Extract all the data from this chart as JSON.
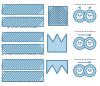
{
  "bg_color": "#ffffff",
  "screw_fill": "#aed6e8",
  "screw_line": "#5588aa",
  "cross_fill": "#aed6e8",
  "cross_line": "#5588aa",
  "circle_outer_fill": "#aed6e8",
  "circle_inner_fill": "#ffffff",
  "circle_line": "#5588aa",
  "arrow_color": "#5588aa",
  "text_color": "#333333",
  "caption_fontsize": 1.8,
  "rows": [
    {
      "cross_type": "closed",
      "flow_type": "counter",
      "screw_slope": 0.6,
      "caption": "(a) counter rotating screws"
    },
    {
      "cross_type": "m_open",
      "flow_type": "co_counter",
      "screw_slope": -0.6,
      "caption": "(b) counter threads co-rotating screws"
    },
    {
      "cross_type": "w_open",
      "flow_type": "co_single",
      "screw_slope": 0.5,
      "caption": "(c) single threads co-rotating screws"
    }
  ]
}
